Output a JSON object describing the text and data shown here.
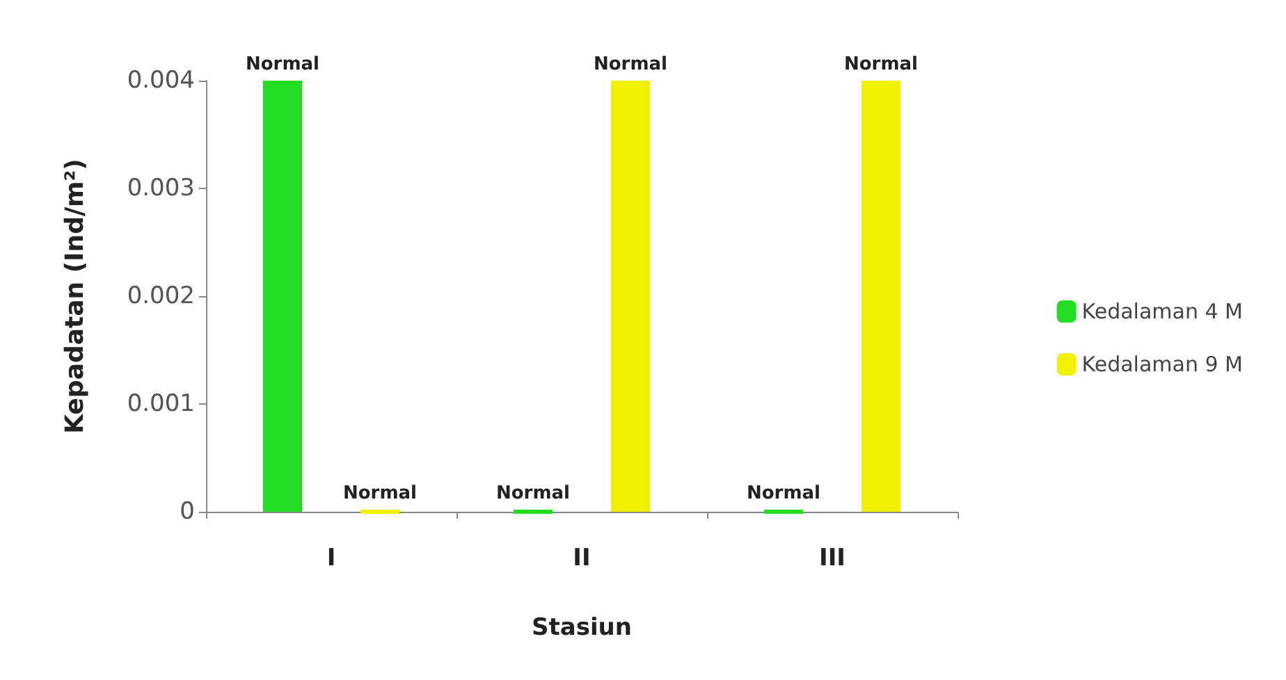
{
  "chart_data": {
    "type": "bar",
    "xlabel": "Stasiun",
    "ylabel": "Kepadatan (Ind/m²)",
    "categories": [
      "I",
      "II",
      "III"
    ],
    "series": [
      {
        "name": "Kedalaman 4 M",
        "color": "#22dd22",
        "values": [
          0.004,
          0,
          0
        ],
        "value_labels": [
          "Normal",
          "Normal",
          "Normal"
        ]
      },
      {
        "name": "Kedalaman 9 M",
        "color": "#f2f200",
        "values": [
          0,
          0.004,
          0.004
        ],
        "value_labels": [
          "Normal",
          "Normal",
          "Normal"
        ]
      }
    ],
    "ylim": [
      0,
      0.004
    ],
    "yticks": [
      0,
      0.001,
      0.002,
      0.003,
      0.004
    ],
    "grid": false,
    "legend": "right"
  }
}
